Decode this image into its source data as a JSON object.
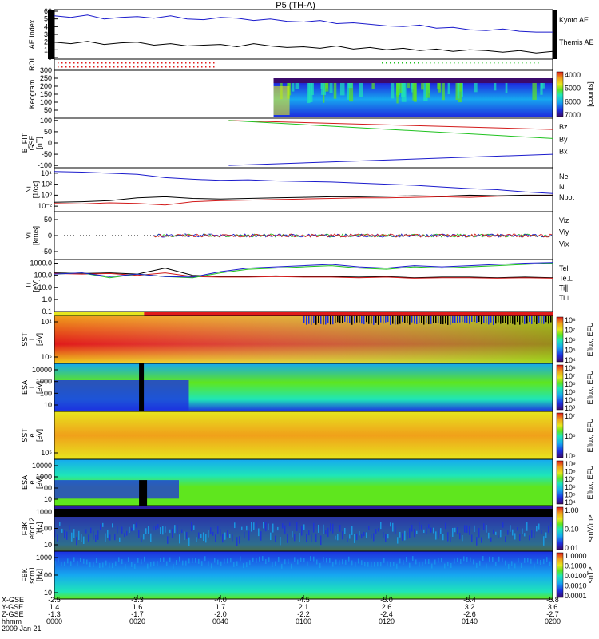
{
  "title": "P5 (TH-A)",
  "colors": {
    "black": "#000000",
    "blue": "#1a1acc",
    "red": "#d21a1a",
    "green": "#1fc21f",
    "rainbow": [
      "#3b0a6b",
      "#1d2fe0",
      "#16a8f0",
      "#1ee6b8",
      "#5fe61e",
      "#e6e61e",
      "#f0a01a",
      "#e01a1a"
    ]
  },
  "chart_data": [
    {
      "id": "ae",
      "type": "line",
      "ylabel": "AE Index",
      "yticks": [
        "0",
        "10",
        "20",
        "30",
        "40",
        "50",
        "60"
      ],
      "ylim": [
        0,
        60
      ],
      "series": [
        {
          "name": "Kyoto AE",
          "color": "blue",
          "values": [
            54,
            52,
            55,
            50,
            52,
            53,
            51,
            54,
            50,
            49,
            52,
            51,
            48,
            50,
            47,
            46,
            48,
            44,
            45,
            43,
            41,
            40,
            42,
            38,
            39,
            36,
            35,
            37,
            34,
            33,
            33
          ]
        },
        {
          "name": "Themis AE",
          "color": "black",
          "values": [
            20,
            18,
            21,
            17,
            19,
            20,
            16,
            18,
            15,
            16,
            17,
            14,
            18,
            15,
            13,
            14,
            12,
            15,
            11,
            13,
            10,
            12,
            9,
            11,
            8,
            10,
            9,
            7,
            9,
            6,
            8
          ]
        }
      ],
      "legend": "right"
    },
    {
      "id": "roi",
      "type": "table",
      "ylabel": "ROI"
    },
    {
      "id": "keogram",
      "type": "heatmap",
      "ylabel": "Keogram",
      "yticks": [
        "50",
        "100",
        "150",
        "200",
        "250",
        "300"
      ],
      "ylim": [
        0,
        300
      ],
      "colorbar": {
        "label": "[counts]",
        "ticks": [
          "4000",
          "5000",
          "6000",
          "7000"
        ]
      }
    },
    {
      "id": "bfield",
      "type": "line",
      "ylabel": "B_FIT\nGSE\n[nT]",
      "yticks": [
        "-100",
        "-50",
        "0",
        "50",
        "100"
      ],
      "ylim": [
        -110,
        110
      ],
      "series": [
        {
          "name": "Bz",
          "color": "red",
          "x": [
            -3.9,
            -5.8
          ],
          "values": [
            100,
            60
          ]
        },
        {
          "name": "By",
          "color": "green",
          "x": [
            -3.9,
            -5.8
          ],
          "values": [
            100,
            20
          ]
        },
        {
          "name": "Bx",
          "color": "blue",
          "x": [
            -3.9,
            -5.8
          ],
          "values": [
            -100,
            -50
          ]
        }
      ],
      "legend": "right"
    },
    {
      "id": "density",
      "type": "line",
      "ylabel": "Ni\n[1/cc]",
      "yticks": [
        "10⁻²",
        "10⁰",
        "10²",
        "10⁴"
      ],
      "ylim": [
        -3,
        5
      ],
      "series": [
        {
          "name": "Ne",
          "color": "red",
          "values": [
            -1.5,
            -1.6,
            -1.4,
            -1.5,
            -1.8,
            -1.2,
            -1.0,
            -0.9,
            -0.8,
            -0.7,
            -0.6,
            -0.5,
            -0.5,
            -0.4,
            -0.3,
            -0.4,
            -0.2,
            -0.1,
            0
          ]
        },
        {
          "name": "Ni",
          "color": "black",
          "values": [
            -1.3,
            -1.2,
            -1.0,
            -0.5,
            -0.3,
            -0.6,
            -0.7,
            -0.6,
            -0.5,
            -0.4,
            -0.3,
            -0.3,
            -0.2,
            -0.1,
            -0.2,
            0,
            -0.1,
            0,
            0
          ]
        },
        {
          "name": "Npot",
          "color": "blue",
          "values": [
            4.3,
            4.2,
            4.0,
            3.8,
            3.2,
            2.9,
            2.7,
            2.8,
            2.6,
            2.5,
            2.4,
            2.2,
            2.0,
            1.8,
            1.5,
            1.2,
            1.0,
            0.6,
            0.3
          ]
        }
      ],
      "legend": "right"
    },
    {
      "id": "velocity",
      "type": "line",
      "ylabel": "Vi\n[km/s]",
      "yticks": [
        "-50",
        "0",
        "50"
      ],
      "series": [
        {
          "name": "Viz",
          "color": "red"
        },
        {
          "name": "Viy",
          "color": "green"
        },
        {
          "name": "Vix",
          "color": "blue"
        }
      ],
      "legend": "right"
    },
    {
      "id": "temperature",
      "type": "line",
      "ylabel": "Ti\n[eV]",
      "yticks": [
        "0.1",
        "1.0",
        "10.0",
        "100.0",
        "1000.0"
      ],
      "ylim": [
        -1,
        3.3
      ],
      "series": [
        {
          "name": "Tell",
          "color": "black",
          "values": [
            2.2,
            2.15,
            2.2,
            2.1,
            2.6,
            2.0,
            1.9,
            1.9,
            1.95,
            1.9,
            1.9,
            1.85,
            1.9,
            1.8,
            1.85,
            1.85,
            1.8,
            1.85,
            1.8
          ]
        },
        {
          "name": "Te⊥",
          "color": "red",
          "values": [
            2.15,
            2.1,
            2.15,
            2.0,
            2.2,
            1.9,
            1.85,
            1.85,
            1.9,
            1.85,
            1.85,
            1.8,
            1.85,
            1.75,
            1.8,
            1.8,
            1.75,
            1.8,
            1.75
          ]
        },
        {
          "name": "Ti∥",
          "color": "green",
          "values": [
            2.1,
            2.2,
            1.8,
            2.1,
            1.9,
            1.8,
            2.2,
            2.5,
            2.6,
            2.7,
            2.8,
            2.6,
            2.5,
            2.7,
            2.6,
            2.7,
            2.8,
            2.9,
            3.0
          ]
        },
        {
          "name": "Ti⊥",
          "color": "blue",
          "values": [
            2.1,
            2.2,
            1.9,
            2.1,
            1.9,
            1.85,
            2.3,
            2.6,
            2.7,
            2.8,
            2.9,
            2.7,
            2.6,
            2.8,
            2.7,
            2.8,
            2.9,
            3.0,
            3.05
          ]
        }
      ],
      "legend": "right"
    },
    {
      "id": "sst_i",
      "type": "heatmap",
      "ylabel": "SST\ni\n[eV]",
      "yticks": [
        "10⁵",
        "10⁴"
      ],
      "colorbar": {
        "label": "Eflux, EFU",
        "ticks": [
          "10⁸",
          "10⁷",
          "10⁶",
          "10⁵",
          "10⁴"
        ]
      }
    },
    {
      "id": "esa_i",
      "type": "heatmap",
      "ylabel": "ESA\ni\n[eV]",
      "yticks": [
        "10",
        "100",
        "1000",
        "10000"
      ],
      "colorbar": {
        "label": "Eflux, EFU",
        "ticks": [
          "10⁸",
          "10⁷",
          "10⁶",
          "10⁵",
          "10⁴",
          "10³"
        ]
      }
    },
    {
      "id": "sst_e",
      "type": "heatmap",
      "ylabel": "SST\ne\n[eV]",
      "yticks": [
        "10⁵"
      ],
      "colorbar": {
        "label": "Eflux, EFU",
        "ticks": [
          "10⁷",
          "10⁶",
          "10⁵"
        ]
      }
    },
    {
      "id": "esa_e",
      "type": "heatmap",
      "ylabel": "ESA\ne\n[eV]",
      "yticks": [
        "10",
        "100",
        "1000",
        "10000"
      ],
      "colorbar": {
        "label": "Eflux, EFU",
        "ticks": [
          "10⁹",
          "10⁸",
          "10⁷",
          "10⁶",
          "10⁵",
          "10⁴"
        ]
      }
    },
    {
      "id": "fbk_e",
      "type": "heatmap",
      "ylabel": "FBK\nefdc12\n[Hz]",
      "yticks": [
        "10",
        "100",
        "1000"
      ],
      "colorbar": {
        "label": "<mV/m>",
        "ticks": [
          "1.00",
          "0.10",
          "0.01"
        ]
      }
    },
    {
      "id": "fbk_b",
      "type": "heatmap",
      "ylabel": "FBK\nscm1\n[Hz]",
      "yticks": [
        "10",
        "100",
        "1000"
      ],
      "colorbar": {
        "label": "<nT>",
        "ticks": [
          "1.0000",
          "0.1000",
          "0.0100",
          "0.0010",
          "0.0001"
        ]
      }
    }
  ],
  "xaxis": {
    "rows": [
      {
        "label": "X-GSE",
        "values": [
          "-2.5",
          "-3.3",
          "-4.0",
          "-4.5",
          "-5.0",
          "-5.4",
          "-5.8"
        ]
      },
      {
        "label": "Y-GSE",
        "values": [
          "1.4",
          "1.6",
          "1.7",
          "2.1",
          "2.6",
          "3.2",
          "3.6"
        ]
      },
      {
        "label": "Z-GSE",
        "values": [
          "-1.3",
          "-1.7",
          "-2.0",
          "-2.2",
          "-2.4",
          "-2.6",
          "-2.7"
        ]
      },
      {
        "label": "hhmm",
        "values": [
          "0000",
          "0020",
          "0040",
          "0100",
          "0120",
          "0140",
          "0200"
        ]
      }
    ],
    "date": "2009 Jan 21"
  }
}
